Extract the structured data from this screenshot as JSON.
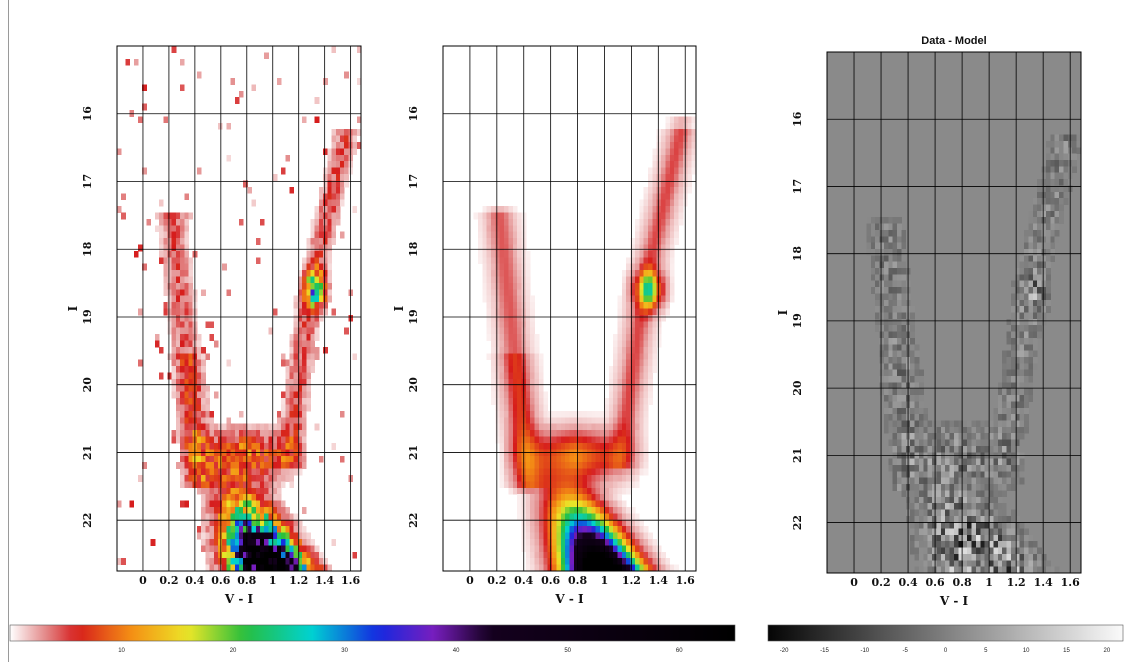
{
  "chart_data": [
    {
      "type": "heatmap",
      "title": "",
      "xlabel": "V - I",
      "ylabel": "I",
      "x_ticks": [
        "0",
        "0.2",
        "0.4",
        "0.6",
        "0.8",
        "1",
        "1.2",
        "1.4",
        "1.6"
      ],
      "y_ticks": [
        "16",
        "17",
        "18",
        "19",
        "20",
        "21",
        "22"
      ],
      "xlim": [
        -0.2,
        1.68
      ],
      "ylim": [
        22.75,
        15.0
      ],
      "grid": true,
      "colormap": "white-red-yellow-green-cyan-blue-purple-black",
      "value_range": [
        0,
        65
      ],
      "features": [
        {
          "name": "main-sequence-turnoff",
          "vi": 0.85,
          "i": 22.4,
          "peak_value": 65
        },
        {
          "name": "red-clump",
          "vi": 1.33,
          "i": 18.6,
          "peak_value": 22
        }
      ]
    },
    {
      "type": "heatmap",
      "title": "",
      "xlabel": "V - I",
      "ylabel": "I",
      "x_ticks": [
        "0",
        "0.2",
        "0.4",
        "0.6",
        "0.8",
        "1",
        "1.2",
        "1.4",
        "1.6"
      ],
      "y_ticks": [
        "16",
        "17",
        "18",
        "19",
        "20",
        "21",
        "22"
      ],
      "xlim": [
        -0.2,
        1.68
      ],
      "ylim": [
        22.75,
        15.0
      ],
      "grid": true,
      "colormap": "white-red-yellow-green-cyan-blue-purple-black",
      "value_range": [
        0,
        65
      ],
      "features": [
        {
          "name": "main-sequence-turnoff",
          "vi": 0.85,
          "i": 22.4,
          "peak_value": 65
        },
        {
          "name": "red-clump",
          "vi": 1.33,
          "i": 18.6,
          "peak_value": 25
        }
      ]
    },
    {
      "type": "heatmap",
      "title": "Data - Model",
      "xlabel": "V - I",
      "ylabel": "I",
      "x_ticks": [
        "0",
        "0.2",
        "0.4",
        "0.6",
        "0.8",
        "1",
        "1.2",
        "1.4",
        "1.6"
      ],
      "y_ticks": [
        "16",
        "17",
        "18",
        "19",
        "20",
        "21",
        "22"
      ],
      "xlim": [
        -0.2,
        1.68
      ],
      "ylim": [
        22.75,
        15.0
      ],
      "grid": true,
      "colormap": "gray",
      "value_range": [
        -22,
        22
      ]
    }
  ],
  "colorbars": [
    {
      "ticks": [
        "10",
        "20",
        "30",
        "40",
        "50",
        "60"
      ],
      "values": [
        10,
        20,
        30,
        40,
        50,
        60
      ],
      "range": [
        0,
        65
      ]
    },
    {
      "ticks": [
        "-20",
        "-15",
        "-10",
        "-5",
        "0",
        "5",
        "10",
        "15",
        "20"
      ],
      "values": [
        -20,
        -15,
        -10,
        -5,
        0,
        5,
        10,
        15,
        20
      ],
      "range": [
        -22,
        22
      ]
    }
  ],
  "colors": {
    "grid": "#000000",
    "residual_background": "#8a8a8a"
  }
}
